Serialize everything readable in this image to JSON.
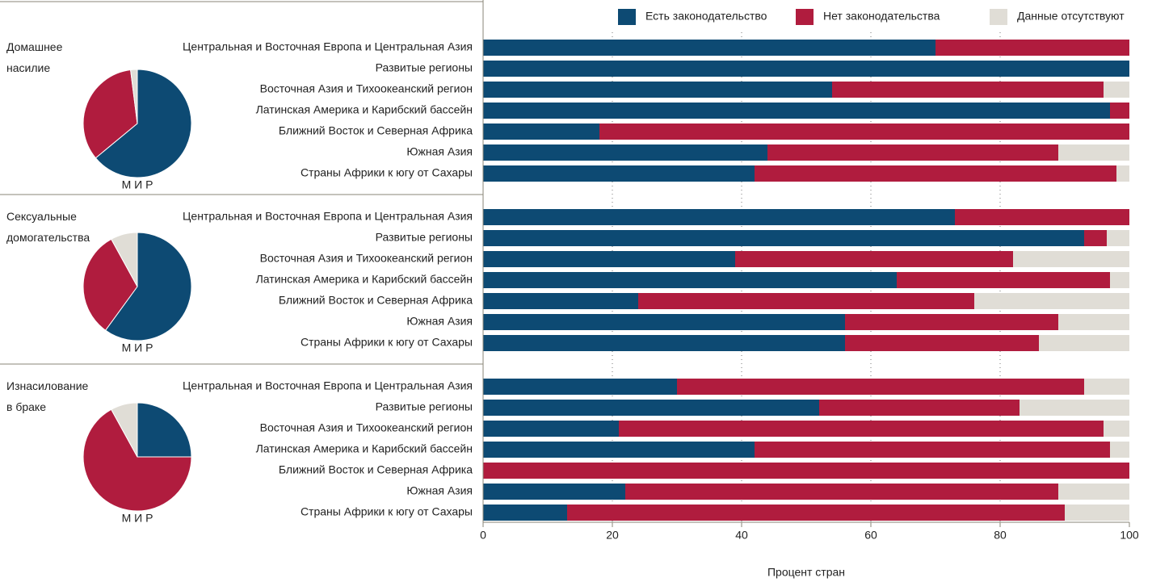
{
  "chart_data": {
    "type": "bar",
    "orientation": "horizontal",
    "stacked": true,
    "xlabel": "Процент стран",
    "xlim": [
      0,
      100
    ],
    "xticks": [
      0,
      20,
      40,
      60,
      80,
      100
    ],
    "grid": true,
    "legend": "top",
    "series": [
      {
        "name": "Есть законодательство",
        "color": "#0d4a73"
      },
      {
        "name": "Нет законодательства",
        "color": "#b01c3e"
      },
      {
        "name": "Данные отсутствуют",
        "color": "#e0ddd6"
      }
    ],
    "groups": [
      {
        "title": "Домашнее насилие",
        "pie": {
          "type": "pie",
          "label": "М И Р",
          "values": [
            64,
            34,
            2
          ]
        },
        "categories": [
          "Центральная и Восточная Европа и Центральная Азия",
          "Развитые регионы",
          "Восточная Азия и Тихоокеанский регион",
          "Латинская Америка и Карибский бассейн",
          "Ближний Восток и Северная Африка",
          "Южная Азия",
          "Страны Африки к югу от Сахары"
        ],
        "values": [
          [
            70,
            100,
            54,
            97,
            18,
            44,
            42
          ],
          [
            30,
            0,
            42,
            3,
            82,
            45,
            56
          ],
          [
            0,
            0,
            4,
            0,
            0,
            11,
            2
          ]
        ]
      },
      {
        "title": "Сексуальные домогательства",
        "pie": {
          "type": "pie",
          "label": "М И Р",
          "values": [
            60,
            32,
            8
          ]
        },
        "categories": [
          "Центральная и Восточная Европа и Центральная Азия",
          "Развитые регионы",
          "Восточная Азия и Тихоокеанский регион",
          "Латинская Америка и Карибский бассейн",
          "Ближний Восток и Северная Африка",
          "Южная Азия",
          "Страны Африки к югу от Сахары"
        ],
        "values": [
          [
            73,
            93,
            39,
            64,
            24,
            56,
            56
          ],
          [
            27,
            3.5,
            43,
            33,
            52,
            33,
            30
          ],
          [
            0,
            3.5,
            18,
            3,
            24,
            11,
            14
          ]
        ]
      },
      {
        "title": "Изнасилование в браке",
        "pie": {
          "type": "pie",
          "label": "М И Р",
          "values": [
            25,
            67,
            8
          ]
        },
        "categories": [
          "Центральная и Восточная Европа и Центральная Азия",
          "Развитые регионы",
          "Восточная Азия и Тихоокеанский регион",
          "Латинская Америка и Карибский бассейн",
          "Ближний Восток и Северная Африка",
          "Южная Азия",
          "Страны Африки к югу от Сахары"
        ],
        "values": [
          [
            30,
            52,
            21,
            42,
            0,
            22,
            13
          ],
          [
            63,
            31,
            75,
            55,
            100,
            67,
            77
          ],
          [
            7,
            17,
            4,
            3,
            0,
            11,
            10
          ]
        ]
      }
    ]
  }
}
